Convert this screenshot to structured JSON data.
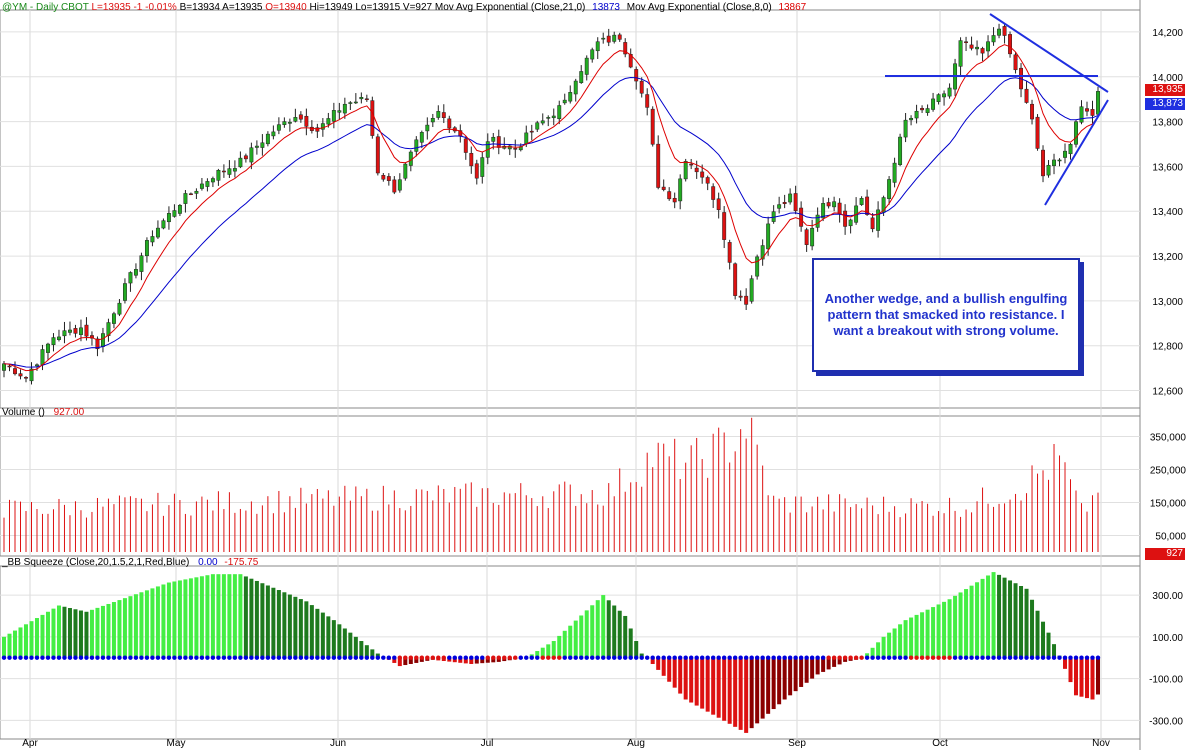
{
  "header": {
    "symbol": "@YM - Daily",
    "exchange": "CBOT",
    "last": "L=13935",
    "change": "-1",
    "pct": "-0.01%",
    "bid": "B=13934",
    "ask": "A=13935",
    "open": "O=13940",
    "high": "Hi=13949",
    "low": "Lo=13915",
    "vol": "V=927",
    "ema21_label": "Mov Avg Exponential (Close,21,0)",
    "ema21_val": "13873",
    "ema8_label": "Mov Avg Exponential (Close,8,0)",
    "ema8_val": "13867"
  },
  "volume_header": {
    "label": "Volume ()",
    "value": "927.00"
  },
  "squeeze_header": {
    "label": "_BB Squeeze (Close,20,1.5,2,1,Red,Blue)",
    "v1": "0.00",
    "v2": "-175.75"
  },
  "annotation": "Another wedge, and a bullish engulfing pattern that smacked into resistance. I want a breakout with strong volume.",
  "price_tags": {
    "last": "13,935",
    "ema": "13,873",
    "volume": "927"
  },
  "colors": {
    "up": "#22aa22",
    "down": "#dd1111",
    "ema8": "#dd0000",
    "ema21": "#0000cc",
    "trendline": "#1f2fe0",
    "bright_green": "#44ee44",
    "dark_green": "#1e7a1e",
    "dark_red": "#8b0000",
    "dot": "#0000dd"
  },
  "chart_data": [
    {
      "type": "candlestick",
      "title": "@YM - Daily",
      "series_names": [
        "Mov Avg Exponential (Close,21,0)",
        "Mov Avg Exponential (Close,8,0)"
      ],
      "x_ticks": [
        "Apr",
        "May",
        "Jun",
        "Jul",
        "Aug",
        "Sep",
        "Oct",
        "Nov"
      ],
      "y_ticks": [
        12600,
        12800,
        13000,
        13200,
        13400,
        13600,
        13800,
        14000,
        14200
      ],
      "ylim": [
        12540,
        14280
      ],
      "grid": true,
      "close_anchors": [
        {
          "i": 0,
          "c": 12720
        },
        {
          "i": 4,
          "c": 12660
        },
        {
          "i": 9,
          "c": 12840
        },
        {
          "i": 14,
          "c": 12880
        },
        {
          "i": 17,
          "c": 12800
        },
        {
          "i": 22,
          "c": 13060
        },
        {
          "i": 27,
          "c": 13300
        },
        {
          "i": 32,
          "c": 13440
        },
        {
          "i": 38,
          "c": 13560
        },
        {
          "i": 43,
          "c": 13620
        },
        {
          "i": 48,
          "c": 13740
        },
        {
          "i": 53,
          "c": 13830
        },
        {
          "i": 57,
          "c": 13760
        },
        {
          "i": 62,
          "c": 13880
        },
        {
          "i": 66,
          "c": 13900
        },
        {
          "i": 68,
          "c": 13580
        },
        {
          "i": 71,
          "c": 13500
        },
        {
          "i": 75,
          "c": 13700
        },
        {
          "i": 79,
          "c": 13840
        },
        {
          "i": 83,
          "c": 13740
        },
        {
          "i": 86,
          "c": 13540
        },
        {
          "i": 88,
          "c": 13720
        },
        {
          "i": 93,
          "c": 13680
        },
        {
          "i": 97,
          "c": 13780
        },
        {
          "i": 102,
          "c": 13880
        },
        {
          "i": 104,
          "c": 14000
        },
        {
          "i": 108,
          "c": 14150
        },
        {
          "i": 112,
          "c": 14180
        },
        {
          "i": 115,
          "c": 14000
        },
        {
          "i": 117,
          "c": 13850
        },
        {
          "i": 119,
          "c": 13520
        },
        {
          "i": 122,
          "c": 13450
        },
        {
          "i": 124,
          "c": 13640
        },
        {
          "i": 127,
          "c": 13560
        },
        {
          "i": 130,
          "c": 13420
        },
        {
          "i": 133,
          "c": 13040
        },
        {
          "i": 135,
          "c": 13000
        },
        {
          "i": 137,
          "c": 13200
        },
        {
          "i": 140,
          "c": 13400
        },
        {
          "i": 143,
          "c": 13460
        },
        {
          "i": 146,
          "c": 13260
        },
        {
          "i": 148,
          "c": 13400
        },
        {
          "i": 151,
          "c": 13460
        },
        {
          "i": 153,
          "c": 13340
        },
        {
          "i": 156,
          "c": 13460
        },
        {
          "i": 158,
          "c": 13320
        },
        {
          "i": 160,
          "c": 13460
        },
        {
          "i": 164,
          "c": 13800
        },
        {
          "i": 168,
          "c": 13860
        },
        {
          "i": 172,
          "c": 13950
        },
        {
          "i": 174,
          "c": 14150
        },
        {
          "i": 178,
          "c": 14100
        },
        {
          "i": 181,
          "c": 14230
        },
        {
          "i": 183,
          "c": 14100
        },
        {
          "i": 185,
          "c": 13950
        },
        {
          "i": 187,
          "c": 13800
        },
        {
          "i": 189,
          "c": 13560
        },
        {
          "i": 191,
          "c": 13620
        },
        {
          "i": 194,
          "c": 13700
        },
        {
          "i": 196,
          "c": 13860
        },
        {
          "i": 197,
          "c": 13860
        },
        {
          "i": 198,
          "c": 13820
        },
        {
          "i": 199,
          "c": 13935
        }
      ],
      "last_close": 13935,
      "ema21_last": 13873,
      "ema8_last": 13867
    },
    {
      "type": "bar",
      "title": "Volume ()",
      "y_ticks": [
        50000,
        150000,
        250000,
        350000
      ],
      "ylim": [
        0,
        400000
      ],
      "anchors": [
        {
          "i": 0,
          "v": 130000
        },
        {
          "i": 40,
          "v": 150000
        },
        {
          "i": 80,
          "v": 170000
        },
        {
          "i": 110,
          "v": 180000
        },
        {
          "i": 118,
          "v": 290000
        },
        {
          "i": 125,
          "v": 270000
        },
        {
          "i": 132,
          "v": 330000
        },
        {
          "i": 135,
          "v": 390000
        },
        {
          "i": 140,
          "v": 150000
        },
        {
          "i": 160,
          "v": 140000
        },
        {
          "i": 175,
          "v": 140000
        },
        {
          "i": 185,
          "v": 200000
        },
        {
          "i": 192,
          "v": 280000
        },
        {
          "i": 196,
          "v": 120000
        },
        {
          "i": 199,
          "v": 180000
        }
      ],
      "last_value": 927
    },
    {
      "type": "bar",
      "title": "_BB Squeeze (Close,20,1.5,2,1,Red,Blue)",
      "y_ticks": [
        -300,
        -100,
        100,
        300
      ],
      "ylim": [
        -370,
        420
      ],
      "anchors": [
        {
          "i": 0,
          "v": 100
        },
        {
          "i": 10,
          "v": 250
        },
        {
          "i": 15,
          "v": 220
        },
        {
          "i": 30,
          "v": 360
        },
        {
          "i": 38,
          "v": 400
        },
        {
          "i": 43,
          "v": 400
        },
        {
          "i": 55,
          "v": 270
        },
        {
          "i": 60,
          "v": 180
        },
        {
          "i": 68,
          "v": 20
        },
        {
          "i": 72,
          "v": -40
        },
        {
          "i": 78,
          "v": -10
        },
        {
          "i": 85,
          "v": -30
        },
        {
          "i": 90,
          "v": -20
        },
        {
          "i": 95,
          "v": 0
        },
        {
          "i": 100,
          "v": 80
        },
        {
          "i": 109,
          "v": 300
        },
        {
          "i": 113,
          "v": 200
        },
        {
          "i": 116,
          "v": 20
        },
        {
          "i": 118,
          "v": -30
        },
        {
          "i": 124,
          "v": -200
        },
        {
          "i": 135,
          "v": -360
        },
        {
          "i": 142,
          "v": -200
        },
        {
          "i": 148,
          "v": -80
        },
        {
          "i": 153,
          "v": -20
        },
        {
          "i": 156,
          "v": -5
        },
        {
          "i": 160,
          "v": 100
        },
        {
          "i": 164,
          "v": 180
        },
        {
          "i": 172,
          "v": 280
        },
        {
          "i": 180,
          "v": 410
        },
        {
          "i": 186,
          "v": 330
        },
        {
          "i": 190,
          "v": 120
        },
        {
          "i": 192,
          "v": 10
        },
        {
          "i": 195,
          "v": -180
        },
        {
          "i": 198,
          "v": -200
        },
        {
          "i": 199,
          "v": -176
        }
      ],
      "last_value": -175.75
    }
  ]
}
